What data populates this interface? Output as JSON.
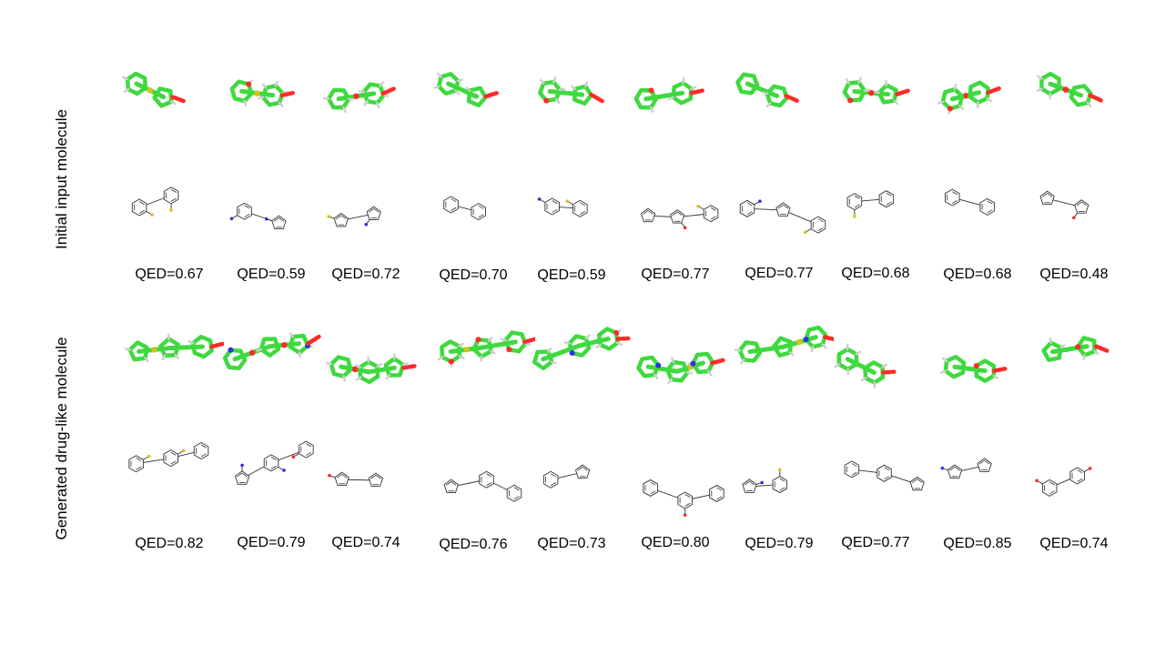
{
  "row_labels": {
    "initial": "Initial input molecule",
    "generated": "Generated drug-like molecule"
  },
  "initial_molecules": [
    {
      "qed": "QED=0.67"
    },
    {
      "qed": "QED=0.59"
    },
    {
      "qed": "QED=0.72"
    },
    {
      "qed": "QED=0.70"
    },
    {
      "qed": "QED=0.59"
    },
    {
      "qed": "QED=0.77"
    },
    {
      "qed": "QED=0.77"
    },
    {
      "qed": "QED=0.68"
    },
    {
      "qed": "QED=0.68"
    },
    {
      "qed": "QED=0.48"
    }
  ],
  "generated_molecules": [
    {
      "qed": "QED=0.82"
    },
    {
      "qed": "QED=0.79"
    },
    {
      "qed": "QED=0.74"
    },
    {
      "qed": "QED=0.76"
    },
    {
      "qed": "QED=0.73"
    },
    {
      "qed": "QED=0.80"
    },
    {
      "qed": "QED=0.79"
    },
    {
      "qed": "QED=0.77"
    },
    {
      "qed": "QED=0.85"
    },
    {
      "qed": "QED=0.74"
    }
  ],
  "colors": {
    "carbon_3d": "#3fd93f",
    "oxygen": "#ff2a2a",
    "nitrogen": "#3030e6",
    "sulfur": "#d6c21c",
    "fluorine": "#8fe08f",
    "hydrogen": "#cfcfcf",
    "bond_2d": "#333333"
  }
}
